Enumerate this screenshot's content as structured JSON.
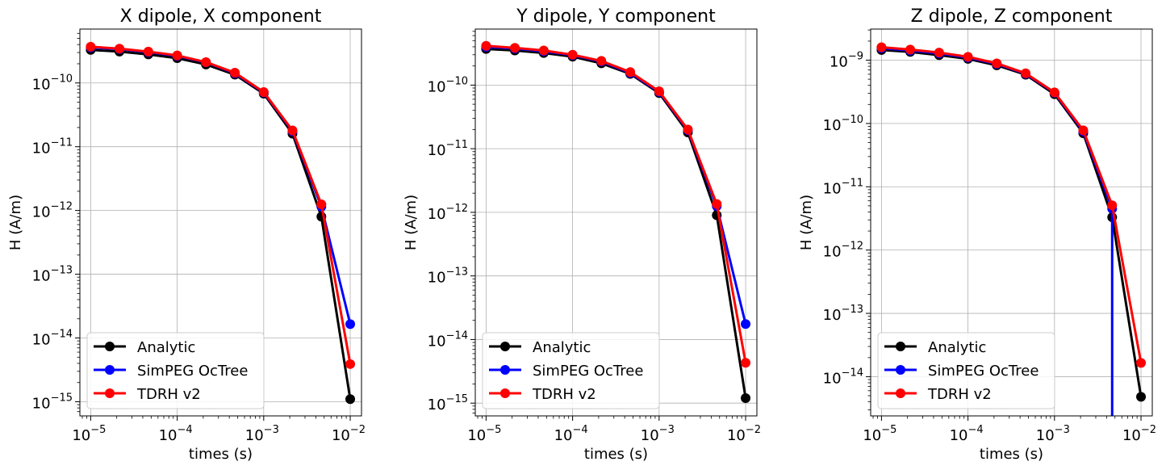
{
  "chart_data": [
    {
      "type": "line",
      "title": "X dipole, X component",
      "xlabel": "times (s)",
      "ylabel": "H (A/m)",
      "xscale": "log",
      "yscale": "log",
      "xlim": [
        7.5e-06,
        0.0135
      ],
      "ylim": [
        6e-16,
        7e-10
      ],
      "x": [
        1e-05,
        2.15e-05,
        4.64e-05,
        0.0001,
        0.000215,
        0.000464,
        0.001,
        0.00215,
        0.00464,
        0.01
      ],
      "x_ticks": [
        1e-05,
        0.0001,
        0.001,
        0.01
      ],
      "x_tick_labels": [
        "10",
        "10",
        "10",
        "10"
      ],
      "x_tick_exponents": [
        "−5",
        "−4",
        "−3",
        "−2"
      ],
      "y_ticks": [
        1e-15,
        1e-14,
        1e-13,
        1e-12,
        1e-11,
        1e-10
      ],
      "y_tick_labels": [
        "10",
        "10",
        "10",
        "10",
        "10",
        "10"
      ],
      "y_tick_exponents": [
        "−15",
        "−14",
        "−13",
        "−12",
        "−11",
        "−10"
      ],
      "grid": true,
      "legend_position": "lower-left",
      "series": [
        {
          "name": "Analytic",
          "color": "#000000",
          "values": [
            3.3e-10,
            3.1e-10,
            2.8e-10,
            2.45e-10,
            1.95e-10,
            1.35e-10,
            6.8e-11,
            1.6e-11,
            8e-13,
            1.1e-15
          ]
        },
        {
          "name": "SimPEG OcTree",
          "color": "#0000ff",
          "values": [
            3.6e-10,
            3.4e-10,
            3.05e-10,
            2.65e-10,
            2.1e-10,
            1.42e-10,
            7.1e-11,
            1.75e-11,
            1.15e-12,
            1.65e-14
          ]
        },
        {
          "name": "TDRH v2",
          "color": "#ff0000",
          "values": [
            3.7e-10,
            3.45e-10,
            3.1e-10,
            2.7e-10,
            2.12e-10,
            1.45e-10,
            7.2e-11,
            1.8e-11,
            1.25e-12,
            3.9e-15
          ]
        }
      ]
    },
    {
      "type": "line",
      "title": "Y dipole, Y component",
      "xlabel": "times (s)",
      "ylabel": "H (A/m)",
      "xscale": "log",
      "yscale": "log",
      "xlim": [
        7.5e-06,
        0.0135
      ],
      "ylim": [
        6.3e-16,
        7.6e-10
      ],
      "x": [
        1e-05,
        2.15e-05,
        4.64e-05,
        0.0001,
        0.000215,
        0.000464,
        0.001,
        0.00215,
        0.00464,
        0.01
      ],
      "x_ticks": [
        1e-05,
        0.0001,
        0.001,
        0.01
      ],
      "x_tick_labels": [
        "10",
        "10",
        "10",
        "10"
      ],
      "x_tick_exponents": [
        "−5",
        "−4",
        "−3",
        "−2"
      ],
      "y_ticks": [
        1e-15,
        1e-14,
        1e-13,
        1e-12,
        1e-11,
        1e-10
      ],
      "y_tick_labels": [
        "10",
        "10",
        "10",
        "10",
        "10",
        "10"
      ],
      "y_tick_exponents": [
        "−15",
        "−14",
        "−13",
        "−12",
        "−11",
        "−10"
      ],
      "grid": true,
      "legend_position": "lower-left",
      "series": [
        {
          "name": "Analytic",
          "color": "#000000",
          "values": [
            3.7e-10,
            3.5e-10,
            3.2e-10,
            2.8e-10,
            2.2e-10,
            1.5e-10,
            7.5e-11,
            1.8e-11,
            9e-13,
            1.2e-15
          ]
        },
        {
          "name": "SimPEG OcTree",
          "color": "#0000ff",
          "values": [
            4e-10,
            3.75e-10,
            3.4e-10,
            2.95e-10,
            2.35e-10,
            1.55e-10,
            7.8e-11,
            1.95e-11,
            1.25e-12,
            1.75e-14
          ]
        },
        {
          "name": "TDRH v2",
          "color": "#ff0000",
          "values": [
            4.15e-10,
            3.85e-10,
            3.5e-10,
            3e-10,
            2.4e-10,
            1.6e-10,
            8e-11,
            2e-11,
            1.35e-12,
            4.3e-15
          ]
        }
      ]
    },
    {
      "type": "line",
      "title": "Z dipole, Z component",
      "xlabel": "times (s)",
      "ylabel": "H (A/m)",
      "xscale": "log",
      "yscale": "log",
      "xlim": [
        7.5e-06,
        0.0135
      ],
      "ylim": [
        2.4e-15,
        3.1e-09
      ],
      "x": [
        1e-05,
        2.15e-05,
        4.64e-05,
        0.0001,
        0.000215,
        0.000464,
        0.001,
        0.00215,
        0.00464,
        0.01
      ],
      "x_ticks": [
        1e-05,
        0.0001,
        0.001,
        0.01
      ],
      "x_tick_labels": [
        "10",
        "10",
        "10",
        "10"
      ],
      "x_tick_exponents": [
        "−5",
        "−4",
        "−3",
        "−2"
      ],
      "y_ticks": [
        1e-14,
        1e-13,
        1e-12,
        1e-11,
        1e-10,
        1e-09
      ],
      "y_tick_labels": [
        "10",
        "10",
        "10",
        "10",
        "10",
        "10"
      ],
      "y_tick_exponents": [
        "−14",
        "−13",
        "−12",
        "−11",
        "−10",
        "−9"
      ],
      "grid": true,
      "legend_position": "lower-left",
      "series": [
        {
          "name": "Analytic",
          "color": "#000000",
          "values": [
            1.45e-09,
            1.35e-09,
            1.2e-09,
            1.05e-09,
            8.3e-10,
            5.9e-10,
            2.9e-10,
            7e-11,
            3.3e-12,
            4.8e-15
          ]
        },
        {
          "name": "SimPEG OcTree",
          "color": "#0000ff",
          "values": [
            1.55e-09,
            1.42e-09,
            1.28e-09,
            1.1e-09,
            8.7e-10,
            6.1e-10,
            3.05e-10,
            7.5e-11,
            4.5e-12,
            null
          ]
        },
        {
          "name": "TDRH v2",
          "color": "#ff0000",
          "values": [
            1.6e-09,
            1.47e-09,
            1.32e-09,
            1.13e-09,
            8.9e-10,
            6.2e-10,
            3.1e-10,
            7.8e-11,
            5.1e-12,
            1.65e-14
          ]
        }
      ]
    }
  ]
}
